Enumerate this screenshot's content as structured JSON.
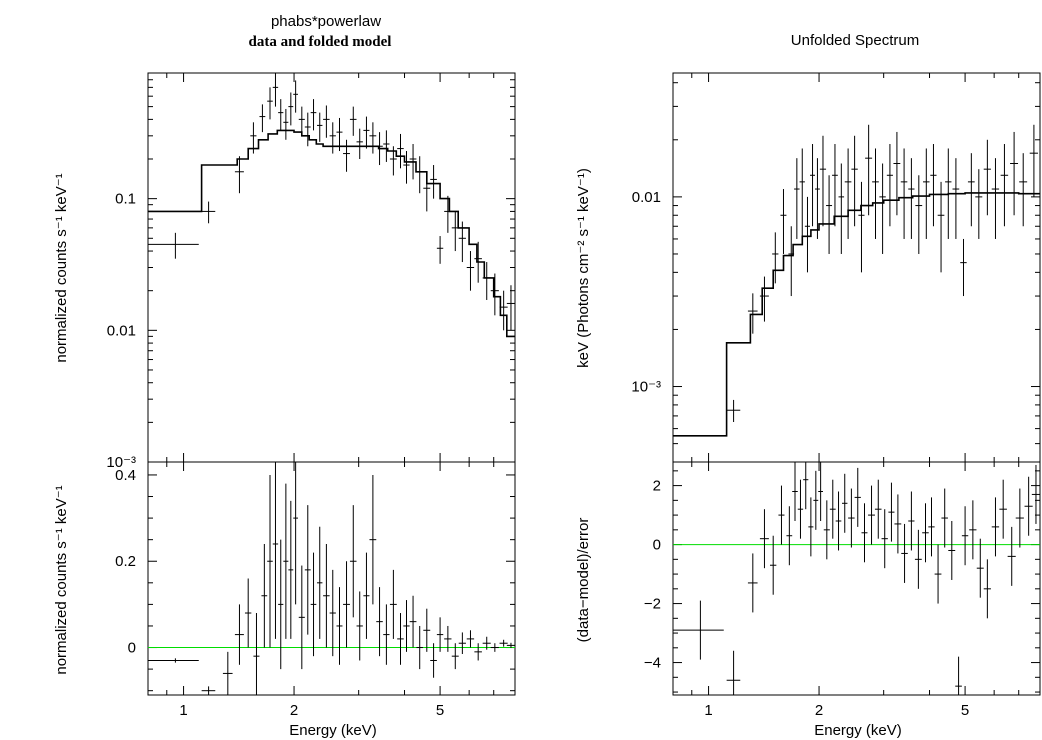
{
  "figure": {
    "left_title": "phabs*powerlaw",
    "left_subtitle": "data and folded model",
    "right_title": "Unfolded Spectrum",
    "left_top_ylabel": "normalized counts s⁻¹ keV⁻¹",
    "left_bottom_ylabel": "normalized counts s⁻¹ keV⁻¹",
    "right_top_ylabel": "keV (Photons cm⁻² s⁻¹ keV⁻¹)",
    "right_bottom_ylabel": "(data−model)/error",
    "xlabel": "Energy (keV)",
    "colors": {
      "axis": "#000000",
      "data": "#000000",
      "zero_line": "#00dd00"
    }
  },
  "chart_data": [
    {
      "type": "scatter",
      "title": "phabs*powerlaw",
      "subtitle": "data and folded model",
      "xlabel": "",
      "ylabel": "normalized counts s⁻¹ keV⁻¹",
      "xscale": "log",
      "yscale": "log",
      "xlim": [
        0.8,
        8.0
      ],
      "ylim": [
        0.001,
        0.9
      ],
      "xticks": [
        1,
        2,
        5
      ],
      "xticklabels": [
        "",
        "",
        ""
      ],
      "yticks": [
        0.1,
        0.01,
        0.001
      ],
      "yticklabels": [
        "0.1",
        "0.01",
        "10⁻³"
      ],
      "grid": false,
      "model_step": {
        "edges": [
          0.8,
          1.12,
          1.4,
          1.5,
          1.6,
          1.7,
          1.8,
          1.9,
          2.0,
          2.1,
          2.2,
          2.3,
          2.4,
          2.6,
          2.8,
          3.0,
          3.2,
          3.4,
          3.6,
          3.8,
          4.0,
          4.3,
          4.6,
          5.0,
          5.3,
          5.6,
          6.0,
          6.3,
          6.6,
          7.0,
          7.3,
          7.6,
          8.0
        ],
        "values": [
          0.08,
          0.18,
          0.2,
          0.24,
          0.28,
          0.31,
          0.33,
          0.33,
          0.32,
          0.3,
          0.28,
          0.26,
          0.25,
          0.25,
          0.25,
          0.25,
          0.25,
          0.24,
          0.23,
          0.21,
          0.19,
          0.16,
          0.13,
          0.1,
          0.08,
          0.06,
          0.045,
          0.033,
          0.025,
          0.018,
          0.013,
          0.009
        ]
      },
      "series": [
        {
          "x": [
            0.95,
            1.17,
            1.42,
            1.55,
            1.64,
            1.72,
            1.78,
            1.84,
            1.9,
            1.96,
            2.02,
            2.1,
            2.18,
            2.26,
            2.35,
            2.45,
            2.55,
            2.66,
            2.78,
            2.9,
            3.02,
            3.15,
            3.28,
            3.42,
            3.57,
            3.73,
            3.9,
            4.05,
            4.22,
            4.4,
            4.6,
            4.8,
            5.0,
            5.25,
            5.5,
            5.75,
            6.05,
            6.35,
            6.7,
            7.05,
            7.45,
            7.8
          ],
          "y": [
            0.045,
            0.08,
            0.16,
            0.3,
            0.42,
            0.55,
            0.7,
            0.45,
            0.38,
            0.5,
            0.62,
            0.4,
            0.35,
            0.45,
            0.36,
            0.4,
            0.3,
            0.32,
            0.22,
            0.4,
            0.27,
            0.33,
            0.3,
            0.25,
            0.26,
            0.2,
            0.24,
            0.18,
            0.2,
            0.16,
            0.12,
            0.14,
            0.042,
            0.08,
            0.06,
            0.05,
            0.03,
            0.035,
            0.025,
            0.02,
            0.015,
            0.016
          ],
          "xerr": [
            0.15,
            0.05,
            0.04,
            0.03,
            0.03,
            0.03,
            0.03,
            0.03,
            0.03,
            0.03,
            0.03,
            0.04,
            0.04,
            0.04,
            0.04,
            0.05,
            0.05,
            0.05,
            0.06,
            0.06,
            0.06,
            0.06,
            0.07,
            0.07,
            0.07,
            0.08,
            0.08,
            0.08,
            0.09,
            0.09,
            0.1,
            0.1,
            0.1,
            0.12,
            0.12,
            0.13,
            0.14,
            0.15,
            0.17,
            0.18,
            0.19,
            0.2
          ],
          "yerr": [
            0.01,
            0.015,
            0.05,
            0.08,
            0.1,
            0.15,
            0.2,
            0.12,
            0.1,
            0.14,
            0.17,
            0.1,
            0.1,
            0.12,
            0.09,
            0.11,
            0.08,
            0.09,
            0.06,
            0.1,
            0.07,
            0.09,
            0.08,
            0.07,
            0.07,
            0.05,
            0.07,
            0.05,
            0.06,
            0.05,
            0.04,
            0.04,
            0.01,
            0.025,
            0.02,
            0.017,
            0.01,
            0.012,
            0.008,
            0.007,
            0.005,
            0.006
          ]
        }
      ]
    },
    {
      "type": "scatter",
      "xlabel": "Energy (keV)",
      "ylabel": "normalized counts s⁻¹ keV⁻¹",
      "xscale": "log",
      "yscale": "linear",
      "xlim": [
        0.8,
        8.0
      ],
      "ylim": [
        -0.11,
        0.43
      ],
      "xticks": [
        1,
        2,
        5
      ],
      "xticklabels": [
        "1",
        "2",
        "5"
      ],
      "yticks": [
        0,
        0.2,
        0.4
      ],
      "yticklabels": [
        "0",
        "0.2",
        "0.4"
      ],
      "grid": false,
      "zero_line": 0,
      "series": [
        {
          "x": [
            0.95,
            1.17,
            1.32,
            1.42,
            1.5,
            1.58,
            1.66,
            1.72,
            1.78,
            1.84,
            1.9,
            1.96,
            2.02,
            2.1,
            2.18,
            2.26,
            2.35,
            2.45,
            2.55,
            2.66,
            2.78,
            2.9,
            3.02,
            3.15,
            3.28,
            3.42,
            3.57,
            3.73,
            3.9,
            4.05,
            4.22,
            4.4,
            4.6,
            4.8,
            5.0,
            5.25,
            5.5,
            5.75,
            6.05,
            6.35,
            6.7,
            7.05,
            7.45,
            7.8
          ],
          "y": [
            -0.03,
            -0.1,
            -0.06,
            0.03,
            0.08,
            -0.02,
            0.12,
            0.2,
            0.24,
            0.1,
            0.2,
            0.18,
            0.3,
            0.07,
            0.18,
            0.1,
            0.15,
            0.12,
            0.08,
            0.05,
            0.1,
            0.2,
            0.05,
            0.12,
            0.25,
            0.06,
            0.03,
            0.1,
            0.02,
            0.05,
            0.06,
            0.0,
            0.04,
            -0.03,
            0.03,
            0.02,
            -0.02,
            0.01,
            0.02,
            -0.01,
            0.01,
            0.0,
            0.01,
            0.005
          ],
          "xerr": [
            0.15,
            0.05,
            0.04,
            0.04,
            0.03,
            0.03,
            0.03,
            0.03,
            0.03,
            0.03,
            0.03,
            0.03,
            0.03,
            0.04,
            0.04,
            0.04,
            0.04,
            0.05,
            0.05,
            0.05,
            0.06,
            0.06,
            0.06,
            0.06,
            0.07,
            0.07,
            0.07,
            0.08,
            0.08,
            0.08,
            0.09,
            0.09,
            0.1,
            0.1,
            0.1,
            0.12,
            0.12,
            0.13,
            0.14,
            0.15,
            0.17,
            0.18,
            0.19,
            0.2
          ],
          "yerr": [
            0.005,
            0.01,
            0.05,
            0.07,
            0.08,
            0.1,
            0.12,
            0.2,
            0.22,
            0.15,
            0.18,
            0.16,
            0.2,
            0.12,
            0.15,
            0.12,
            0.13,
            0.12,
            0.1,
            0.09,
            0.1,
            0.13,
            0.08,
            0.1,
            0.15,
            0.08,
            0.07,
            0.08,
            0.06,
            0.06,
            0.06,
            0.05,
            0.05,
            0.04,
            0.04,
            0.03,
            0.03,
            0.025,
            0.02,
            0.02,
            0.015,
            0.01,
            0.008,
            0.006
          ]
        }
      ]
    },
    {
      "type": "scatter",
      "title": "Unfolded Spectrum",
      "xlabel": "",
      "ylabel": "keV (Photons cm⁻² s⁻¹ keV⁻¹)",
      "xscale": "log",
      "yscale": "log",
      "xlim": [
        0.8,
        8.0
      ],
      "ylim": [
        0.0004,
        0.045
      ],
      "xticks": [
        1,
        2,
        5
      ],
      "xticklabels": [
        "",
        "",
        ""
      ],
      "yticks": [
        0.01,
        0.001
      ],
      "yticklabels": [
        "0.01",
        "10⁻³"
      ],
      "grid": false,
      "model_step": {
        "edges": [
          0.8,
          1.12,
          1.3,
          1.4,
          1.5,
          1.6,
          1.7,
          1.8,
          1.9,
          2.0,
          2.2,
          2.4,
          2.6,
          2.8,
          3.0,
          3.3,
          3.6,
          4.0,
          4.5,
          5.0,
          5.5,
          6.0,
          7.0,
          8.0
        ],
        "values": [
          0.00055,
          0.0017,
          0.0024,
          0.0033,
          0.0041,
          0.0049,
          0.0056,
          0.0062,
          0.0067,
          0.0072,
          0.0079,
          0.0085,
          0.009,
          0.0093,
          0.0096,
          0.0099,
          0.0101,
          0.0103,
          0.0104,
          0.0105,
          0.0105,
          0.0105,
          0.0104
        ]
      },
      "series": [
        {
          "x": [
            1.17,
            1.32,
            1.42,
            1.52,
            1.6,
            1.68,
            1.74,
            1.8,
            1.86,
            1.92,
            1.98,
            2.05,
            2.13,
            2.21,
            2.3,
            2.4,
            2.5,
            2.61,
            2.73,
            2.85,
            2.98,
            3.12,
            3.26,
            3.41,
            3.57,
            3.74,
            3.92,
            4.1,
            4.3,
            4.5,
            4.72,
            4.95,
            5.2,
            5.45,
            5.75,
            6.05,
            6.4,
            6.8,
            7.2,
            7.7
          ],
          "y": [
            0.00075,
            0.0025,
            0.003,
            0.005,
            0.008,
            0.005,
            0.011,
            0.012,
            0.007,
            0.013,
            0.011,
            0.014,
            0.009,
            0.013,
            0.01,
            0.012,
            0.014,
            0.008,
            0.016,
            0.012,
            0.01,
            0.013,
            0.015,
            0.012,
            0.011,
            0.009,
            0.012,
            0.013,
            0.008,
            0.012,
            0.011,
            0.0045,
            0.012,
            0.01,
            0.014,
            0.011,
            0.013,
            0.015,
            0.012,
            0.017
          ],
          "xerr": [
            0.05,
            0.04,
            0.04,
            0.03,
            0.03,
            0.03,
            0.03,
            0.03,
            0.03,
            0.03,
            0.03,
            0.04,
            0.04,
            0.04,
            0.04,
            0.05,
            0.05,
            0.05,
            0.06,
            0.06,
            0.06,
            0.06,
            0.07,
            0.07,
            0.07,
            0.08,
            0.08,
            0.08,
            0.09,
            0.09,
            0.1,
            0.1,
            0.11,
            0.12,
            0.13,
            0.14,
            0.15,
            0.17,
            0.18,
            0.2
          ],
          "yerr": [
            0.0001,
            0.0006,
            0.0008,
            0.0015,
            0.003,
            0.002,
            0.005,
            0.006,
            0.003,
            0.006,
            0.005,
            0.007,
            0.004,
            0.006,
            0.005,
            0.006,
            0.007,
            0.004,
            0.008,
            0.006,
            0.005,
            0.006,
            0.007,
            0.006,
            0.005,
            0.004,
            0.006,
            0.006,
            0.004,
            0.006,
            0.005,
            0.0015,
            0.005,
            0.004,
            0.006,
            0.005,
            0.006,
            0.007,
            0.005,
            0.007
          ]
        }
      ]
    },
    {
      "type": "scatter",
      "xlabel": "Energy (keV)",
      "ylabel": "(data−model)/error",
      "xscale": "log",
      "yscale": "linear",
      "xlim": [
        0.8,
        8.0
      ],
      "ylim": [
        -5.1,
        2.8
      ],
      "xticks": [
        1,
        2,
        5
      ],
      "xticklabels": [
        "1",
        "2",
        "5"
      ],
      "yticks": [
        2,
        0,
        -2,
        -4
      ],
      "yticklabels": [
        "2",
        "0",
        "−2",
        "−4"
      ],
      "grid": false,
      "zero_line": 0,
      "series": [
        {
          "x": [
            0.95,
            1.17,
            1.32,
            1.42,
            1.5,
            1.58,
            1.66,
            1.72,
            1.78,
            1.84,
            1.9,
            1.96,
            2.02,
            2.1,
            2.18,
            2.26,
            2.35,
            2.45,
            2.55,
            2.66,
            2.78,
            2.9,
            3.02,
            3.15,
            3.28,
            3.42,
            3.57,
            3.73,
            3.9,
            4.05,
            4.22,
            4.4,
            4.6,
            4.8,
            5.0,
            5.25,
            5.5,
            5.75,
            6.05,
            6.35,
            6.7,
            7.05,
            7.45,
            7.8
          ],
          "y": [
            -2.9,
            -4.6,
            -1.3,
            0.2,
            -0.7,
            1.0,
            0.3,
            1.8,
            1.2,
            2.2,
            0.6,
            1.5,
            1.8,
            0.5,
            1.2,
            0.8,
            1.4,
            0.9,
            1.6,
            0.4,
            1.0,
            1.2,
            0.2,
            1.1,
            0.7,
            -0.3,
            0.8,
            -0.5,
            0.4,
            0.6,
            -1.0,
            0.9,
            -0.2,
            -4.8,
            0.3,
            0.5,
            -0.8,
            -1.5,
            0.6,
            1.2,
            -0.4,
            0.9,
            1.3,
            1.7
          ],
          "xerr": [
            0.15,
            0.05,
            0.04,
            0.04,
            0.03,
            0.03,
            0.03,
            0.03,
            0.03,
            0.03,
            0.03,
            0.03,
            0.03,
            0.04,
            0.04,
            0.04,
            0.04,
            0.05,
            0.05,
            0.05,
            0.06,
            0.06,
            0.06,
            0.06,
            0.07,
            0.07,
            0.07,
            0.08,
            0.08,
            0.08,
            0.09,
            0.09,
            0.1,
            0.1,
            0.1,
            0.12,
            0.12,
            0.13,
            0.14,
            0.15,
            0.17,
            0.18,
            0.19,
            0.2
          ],
          "yerr": [
            1.0,
            1.0,
            1.0,
            1.0,
            1.0,
            1.0,
            1.0,
            1.0,
            1.0,
            1.0,
            1.0,
            1.0,
            1.0,
            1.0,
            1.0,
            1.0,
            1.0,
            1.0,
            1.0,
            1.0,
            1.0,
            1.0,
            1.0,
            1.0,
            1.0,
            1.0,
            1.0,
            1.0,
            1.0,
            1.0,
            1.0,
            1.0,
            1.0,
            1.0,
            1.0,
            1.0,
            1.0,
            1.0,
            1.0,
            1.0,
            1.0,
            1.0,
            1.0,
            1.0
          ]
        }
      ]
    }
  ]
}
